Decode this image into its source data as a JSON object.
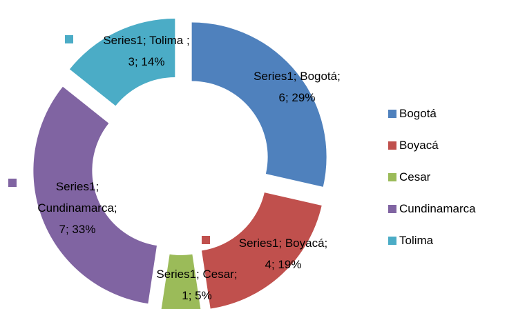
{
  "chart_data": {
    "type": "doughnut",
    "categories": [
      "Bogotá",
      "Boyacá",
      "Cesar",
      "Cundinamarca",
      "Tolima"
    ],
    "series": [
      {
        "name": "Series1",
        "colors": [
          "#4f81bd",
          "#c0504d",
          "#9bbb59",
          "#8064a2",
          "#4bacc6"
        ],
        "values": [
          6,
          4,
          1,
          7,
          3
        ],
        "value_labels": [
          "Series1; Bogotá;\n6; 29%",
          "Series1; Boyacá;\n4; 19%",
          "Series1; Cesar;\n1; 5%",
          "Series1;\nCundinamarca;\n7; 33%",
          "Series1; Tolima ;\n3; 14%"
        ]
      }
    ],
    "legend": "right"
  }
}
